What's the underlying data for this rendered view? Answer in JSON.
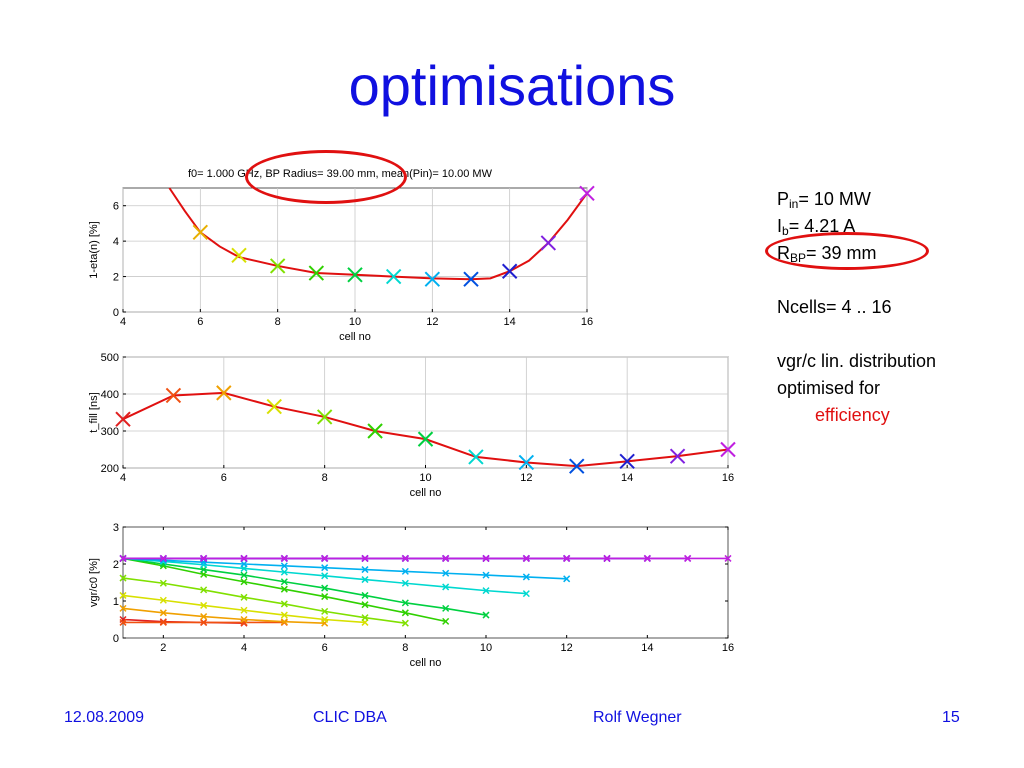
{
  "slide": {
    "title": "optimisations",
    "footer": {
      "date": "12.08.2009",
      "event": "CLIC DBA",
      "author": "Rolf Wegner",
      "page": "15"
    }
  },
  "notes": {
    "pin_base": "P",
    "pin_sub": "in",
    "pin_rest": "= 10 MW",
    "ib_base": "I",
    "ib_sub": "b",
    "ib_rest": "= 4.21 A",
    "rbp_base": "R",
    "rbp_sub": "BP",
    "rbp_rest": "= 39 mm",
    "ncells": "Ncells= 4 .. 16",
    "vgr_line1": "vgr/c  lin. distribution",
    "vgr_line2": "optimised for",
    "vgr_line3": "efficiency"
  },
  "colors": {
    "title": "#1010e0",
    "curve": "#e01010",
    "annotation": "#e01010"
  },
  "chart_data": [
    {
      "type": "line",
      "title": "f0= 1.000 GHz,  BP Radius= 39.00 mm,  mean(Pin)= 10.00 MW",
      "xlabel": "cell no",
      "ylabel": "1-eta(n) [%]",
      "xlim": [
        4,
        16
      ],
      "ylim": [
        0,
        7
      ],
      "xticks": [
        4,
        6,
        8,
        10,
        12,
        14,
        16
      ],
      "yticks": [
        0,
        2,
        4,
        6
      ],
      "curve": {
        "x": [
          5.2,
          5.6,
          6,
          6.5,
          7,
          8,
          9,
          10,
          11,
          12,
          13,
          13.5,
          14,
          14.5,
          15,
          15.5,
          16
        ],
        "y": [
          7.0,
          5.7,
          4.5,
          3.7,
          3.1,
          2.6,
          2.2,
          2.1,
          2.0,
          1.9,
          1.85,
          1.9,
          2.3,
          2.9,
          3.9,
          5.2,
          6.7
        ]
      },
      "markers": {
        "x": [
          6,
          7,
          8,
          9,
          10,
          11,
          12,
          13,
          14,
          15,
          16
        ],
        "y": [
          4.5,
          3.2,
          2.6,
          2.2,
          2.1,
          2.0,
          1.85,
          1.85,
          2.3,
          3.9,
          6.7
        ],
        "colors": [
          "#e8b000",
          "#d8e000",
          "#80e000",
          "#30d000",
          "#00d040",
          "#00d8d0",
          "#00b0f0",
          "#0050e0",
          "#2020d0",
          "#8020e0",
          "#c020e0"
        ]
      },
      "grid": true
    },
    {
      "type": "line",
      "xlabel": "cell no",
      "ylabel": "t_fill [ns]",
      "xlim": [
        4,
        16
      ],
      "ylim": [
        200,
        500
      ],
      "xticks": [
        4,
        6,
        8,
        10,
        12,
        14,
        16
      ],
      "yticks": [
        200,
        300,
        400,
        500
      ],
      "curve": {
        "x": [
          4,
          5,
          6,
          7,
          8,
          9,
          10,
          11,
          12,
          13,
          14,
          15,
          16
        ],
        "y": [
          332,
          396,
          403,
          366,
          338,
          300,
          278,
          230,
          215,
          205,
          218,
          232,
          250
        ]
      },
      "markers": {
        "x": [
          4,
          5,
          6,
          7,
          8,
          9,
          10,
          11,
          12,
          13,
          14,
          15,
          16
        ],
        "y": [
          332,
          396,
          403,
          366,
          338,
          300,
          278,
          230,
          215,
          205,
          218,
          232,
          250
        ],
        "colors": [
          "#e02020",
          "#f05010",
          "#f0a000",
          "#d8e000",
          "#80e000",
          "#30d000",
          "#00d040",
          "#00d8d0",
          "#00b0f0",
          "#0050e0",
          "#2020d0",
          "#8020e0",
          "#c020e0"
        ]
      },
      "grid": true
    },
    {
      "type": "line",
      "xlabel": "cell no",
      "ylabel": "vgr/c0 [%]",
      "xlim": [
        1,
        16
      ],
      "ylim": [
        0,
        3
      ],
      "xticks": [
        2,
        4,
        6,
        8,
        10,
        12,
        14,
        16
      ],
      "yticks": [
        0,
        1,
        2,
        3
      ],
      "grid": false,
      "series": [
        {
          "n": 4,
          "color": "#e02020",
          "values": [
            0.5,
            0.44,
            0.42,
            0.4
          ]
        },
        {
          "n": 5,
          "color": "#f05010",
          "values": [
            0.42,
            0.42,
            0.42,
            0.42,
            0.42
          ]
        },
        {
          "n": 6,
          "color": "#f0a000",
          "values": [
            0.8,
            0.68,
            0.58,
            0.5,
            0.44,
            0.4
          ]
        },
        {
          "n": 7,
          "color": "#d8e000",
          "values": [
            1.15,
            1.02,
            0.88,
            0.75,
            0.62,
            0.5,
            0.42
          ]
        },
        {
          "n": 8,
          "color": "#80e000",
          "values": [
            1.62,
            1.48,
            1.3,
            1.1,
            0.92,
            0.72,
            0.55,
            0.4
          ]
        },
        {
          "n": 9,
          "color": "#30d000",
          "values": [
            2.15,
            1.95,
            1.72,
            1.52,
            1.32,
            1.12,
            0.9,
            0.68,
            0.45
          ]
        },
        {
          "n": 10,
          "color": "#00d040",
          "values": [
            2.15,
            2.0,
            1.85,
            1.7,
            1.52,
            1.35,
            1.15,
            0.95,
            0.8,
            0.62
          ]
        },
        {
          "n": 11,
          "color": "#00d8d0",
          "values": [
            2.15,
            2.07,
            1.98,
            1.88,
            1.78,
            1.68,
            1.58,
            1.48,
            1.38,
            1.28,
            1.2
          ]
        },
        {
          "n": 12,
          "color": "#00b0f0",
          "values": [
            2.15,
            2.1,
            2.05,
            2.0,
            1.95,
            1.9,
            1.85,
            1.8,
            1.75,
            1.7,
            1.65,
            1.6
          ]
        },
        {
          "n": 13,
          "color": "#0050e0",
          "values": [
            2.15,
            2.15,
            2.15,
            2.15,
            2.15,
            2.15,
            2.15,
            2.15,
            2.15,
            2.15,
            2.15,
            2.15,
            2.15
          ]
        },
        {
          "n": 14,
          "color": "#2020d0",
          "values": [
            2.15,
            2.15,
            2.15,
            2.15,
            2.15,
            2.15,
            2.15,
            2.15,
            2.15,
            2.15,
            2.15,
            2.15,
            2.15,
            2.15
          ]
        },
        {
          "n": 15,
          "color": "#8020e0",
          "values": [
            2.15,
            2.15,
            2.15,
            2.15,
            2.15,
            2.15,
            2.15,
            2.15,
            2.15,
            2.15,
            2.15,
            2.15,
            2.15,
            2.15,
            2.15
          ]
        },
        {
          "n": 16,
          "color": "#c020e0",
          "values": [
            2.15,
            2.15,
            2.15,
            2.15,
            2.15,
            2.15,
            2.15,
            2.15,
            2.15,
            2.15,
            2.15,
            2.15,
            2.15,
            2.15,
            2.15,
            2.15
          ]
        }
      ]
    }
  ]
}
